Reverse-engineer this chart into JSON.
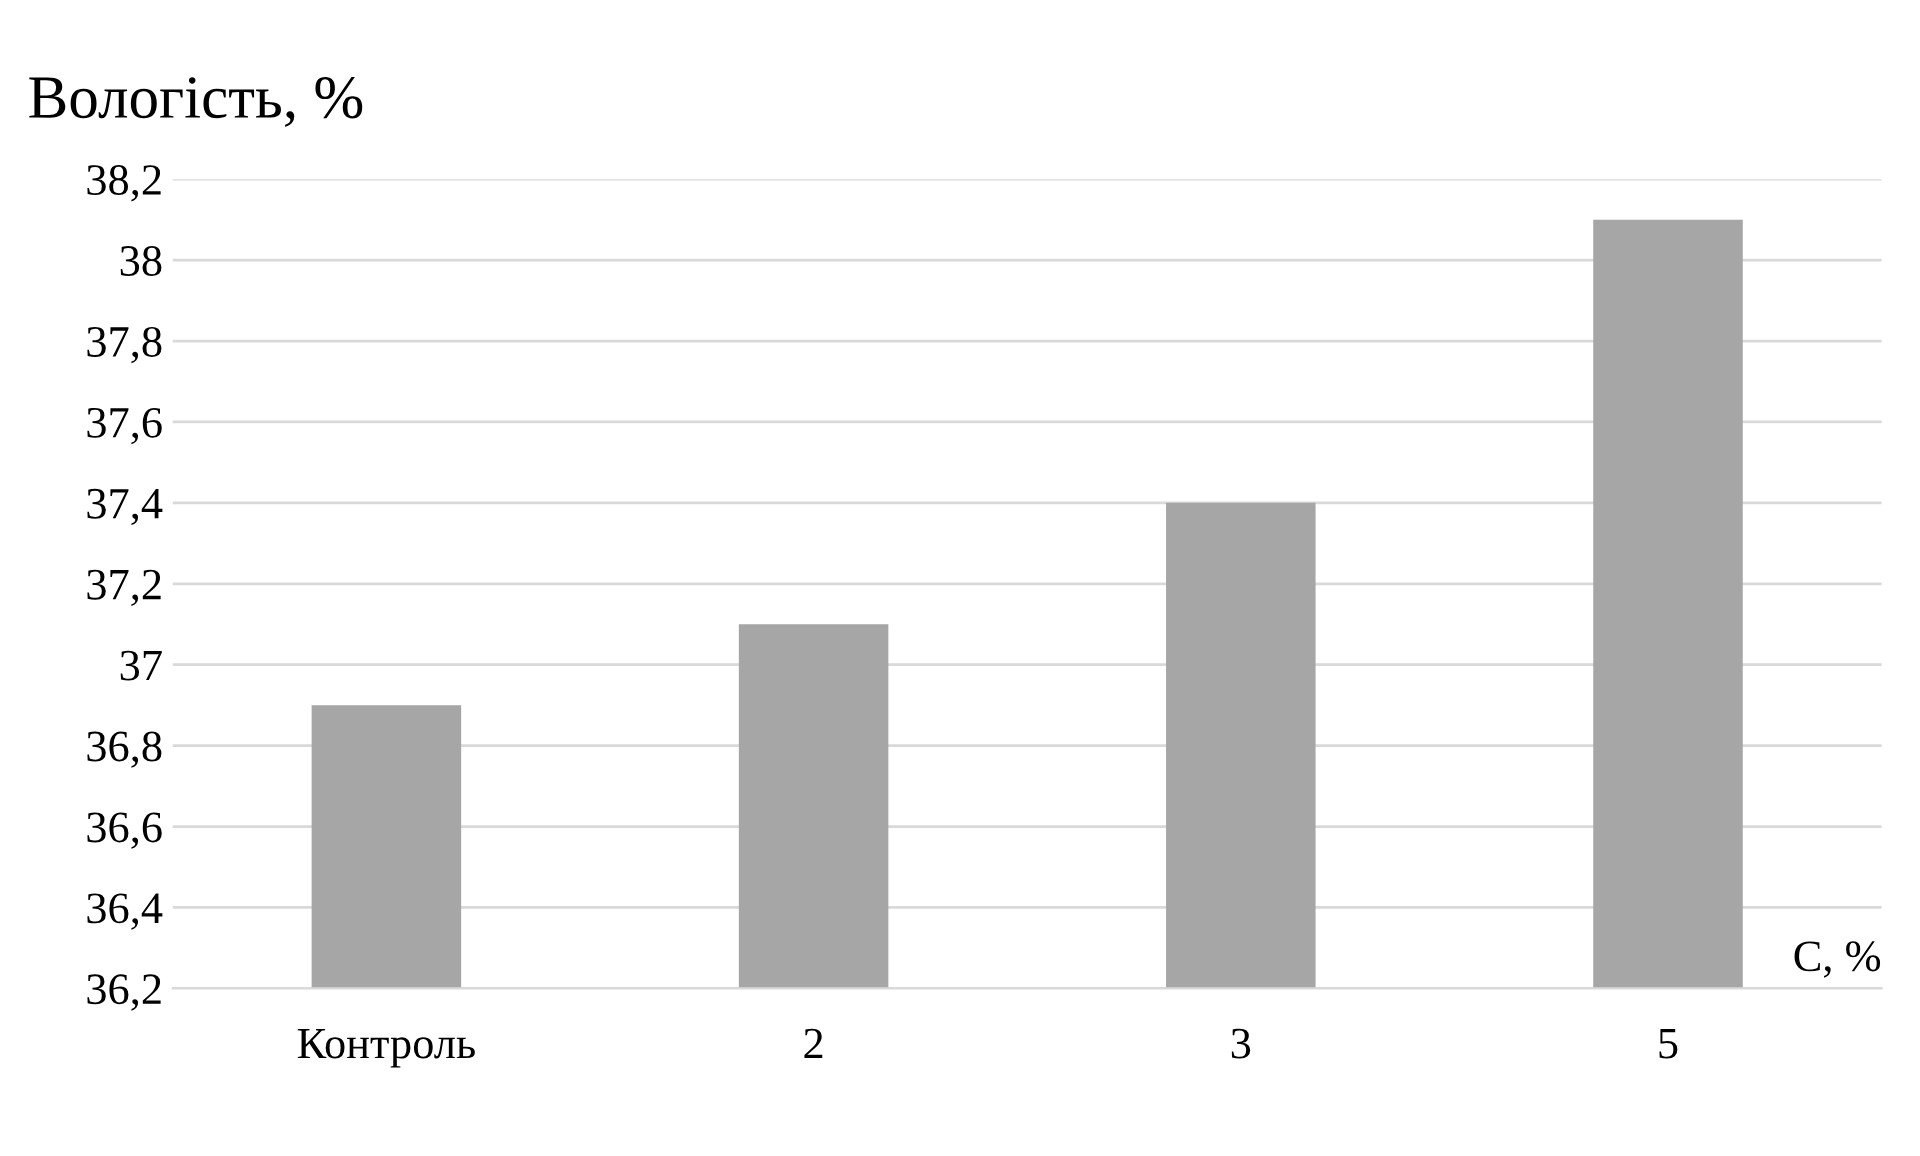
{
  "chart_data": {
    "type": "bar",
    "ylabel": "Вологість, %",
    "xlabel": "C, %",
    "categories": [
      "Контроль",
      "2",
      "3",
      "5"
    ],
    "values": [
      36.9,
      37.1,
      37.4,
      38.1
    ],
    "color": "#a6a6a6",
    "ylim": [
      36.2,
      38.2
    ],
    "yticks": [
      {
        "value": 36.2,
        "label": "36,2"
      },
      {
        "value": 36.4,
        "label": "36,4"
      },
      {
        "value": 36.6,
        "label": "36,6"
      },
      {
        "value": 36.8,
        "label": "36,8"
      },
      37,
      {
        "value": 37.2,
        "label": "37,2"
      },
      {
        "value": 37.4,
        "label": "37,4"
      },
      {
        "value": 37.6,
        "label": "37,6"
      },
      {
        "value": 37.8,
        "label": "37,8"
      },
      38,
      {
        "value": 38.2,
        "label": "38,2"
      }
    ],
    "grid": "y",
    "legend": false
  }
}
